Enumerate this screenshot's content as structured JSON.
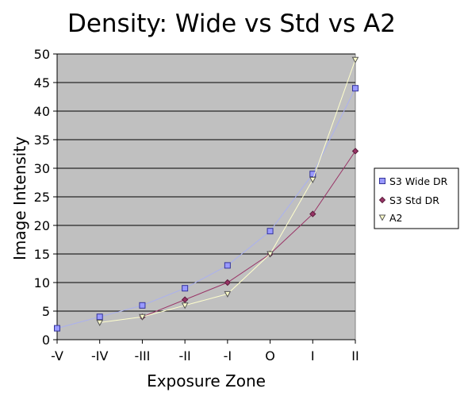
{
  "chart_data": {
    "type": "line",
    "title": "Density: Wide vs Std vs A2",
    "xlabel": "Exposure Zone",
    "ylabel": "Image Intensity",
    "categories": [
      "-V",
      "-IV",
      "-III",
      "-II",
      "-I",
      "O",
      "I",
      "II"
    ],
    "ylim": [
      0,
      50
    ],
    "yticks": [
      0,
      5,
      10,
      15,
      20,
      25,
      30,
      35,
      40,
      45,
      50
    ],
    "grid": "horizontal",
    "legend_position": "right",
    "series": [
      {
        "name": "S3 Wide DR",
        "values": [
          2,
          4,
          6,
          9,
          13,
          19,
          29,
          44
        ],
        "line_color": "#aab0f0",
        "marker": "square",
        "marker_fill": "#9999ff",
        "marker_stroke": "#333399"
      },
      {
        "name": "S3 Std DR",
        "values": [
          null,
          null,
          4,
          7,
          10,
          15,
          22,
          33
        ],
        "line_color": "#993366",
        "marker": "diamond",
        "marker_fill": "#993366",
        "marker_stroke": "#5a1e3c"
      },
      {
        "name": "A2",
        "values": [
          null,
          3,
          4,
          6,
          8,
          15,
          28,
          49
        ],
        "line_color": "#ffffcc",
        "marker": "triangle-down",
        "marker_fill": "#ffffcc",
        "marker_stroke": "#555555"
      }
    ],
    "plot_background": "#c0c0c0",
    "gridline_color": "#000000"
  }
}
